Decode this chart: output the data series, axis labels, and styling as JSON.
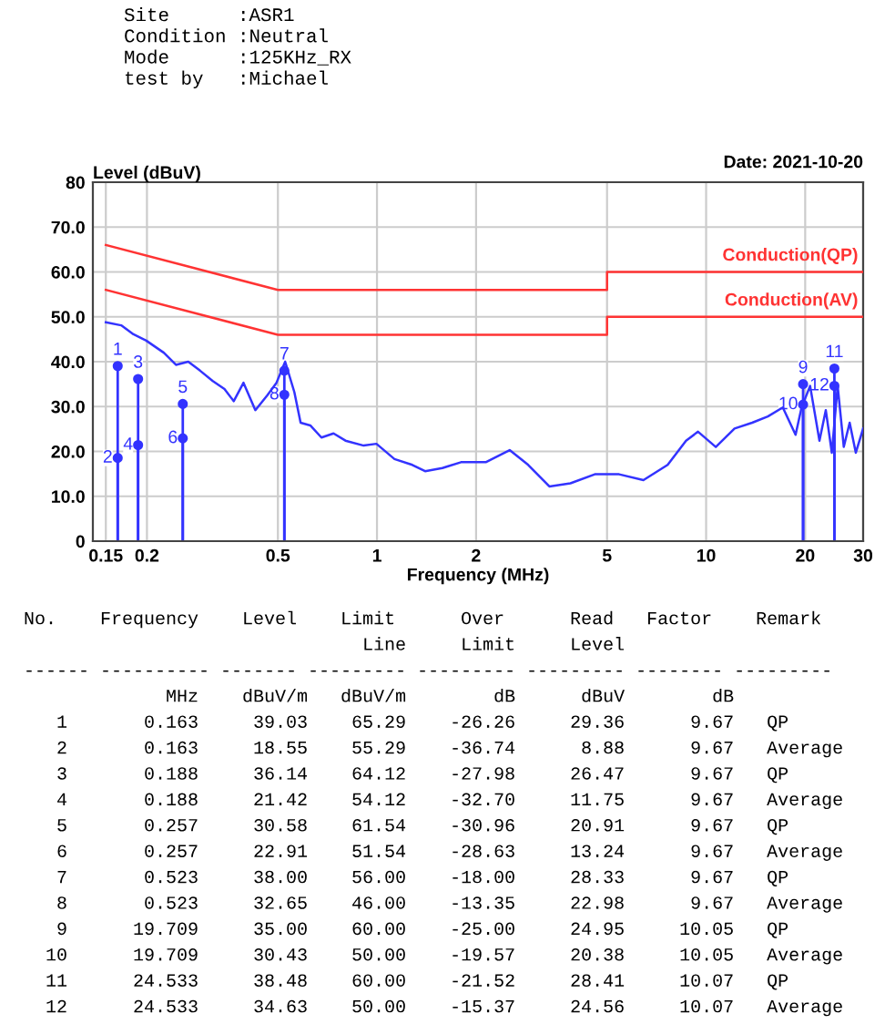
{
  "chart_data": {
    "type": "line",
    "title": "Site      :ASR1\nCondition :Neutral\nMode      :125KHz_RX\ntest by   :Michael",
    "subtitle": "Date: 2021-10-20",
    "xlabel": "Frequency (MHz)",
    "ylabel": "Level (dBuV)",
    "log": "x",
    "grid": true,
    "legend": false,
    "marker": "none",
    "line_style": "solid",
    "xlim": [
      0.137,
      30
    ],
    "xticks": [
      0.15,
      0.2,
      0.5,
      1,
      2,
      5,
      10,
      20,
      30
    ],
    "ylim": [
      0,
      80
    ],
    "yticks": [
      0,
      {
        "value": 10,
        "label": "10.0"
      },
      {
        "value": 20,
        "label": "20.0"
      },
      {
        "value": 30,
        "label": "30.0"
      },
      {
        "value": 40,
        "label": "40.0"
      },
      {
        "value": 50,
        "label": "50.0"
      },
      {
        "value": 60,
        "label": "60.0"
      },
      {
        "value": 70,
        "label": "70.0"
      },
      80
    ],
    "series": [
      {
        "color": "#3333ff",
        "x": [
          0.15,
          0.167,
          0.182,
          0.199,
          0.225,
          0.245,
          0.267,
          0.29,
          0.317,
          0.344,
          0.367,
          0.393,
          0.427,
          0.464,
          0.495,
          0.526,
          0.561,
          0.586,
          0.627,
          0.678,
          0.738,
          0.802,
          0.911,
          0.996,
          1.13,
          1.28,
          1.4,
          1.58,
          1.8,
          2.14,
          2.53,
          2.88,
          3.34,
          3.87,
          4.59,
          5.44,
          6.45,
          7.64,
          8.69,
          9.45,
          10.7,
          12.2,
          13.8,
          15.4,
          17.1,
          18.7,
          19.5,
          20.7,
          22.1,
          23.1,
          24.1,
          25.1,
          26.2,
          27.3,
          28.5,
          30
        ],
        "values": [
          48.8,
          48.1,
          46.1,
          44.7,
          42.0,
          39.3,
          40.0,
          38.0,
          35.7,
          33.9,
          31.2,
          35.3,
          29.2,
          32.5,
          35.3,
          40.0,
          33.2,
          26.4,
          25.8,
          23.1,
          24.0,
          22.4,
          21.3,
          21.7,
          18.3,
          17.0,
          15.6,
          16.3,
          17.6,
          17.6,
          20.3,
          17.0,
          12.2,
          12.9,
          14.9,
          14.9,
          13.6,
          17.0,
          22.4,
          24.4,
          21.0,
          25.1,
          26.4,
          27.8,
          29.8,
          23.7,
          29.8,
          34.6,
          22.4,
          29.2,
          19.7,
          34.6,
          21.0,
          26.4,
          19.7,
          25.1
        ]
      },
      {
        "name": "Conduction(QP)",
        "color": "#ff3333",
        "x": [
          0.15,
          0.5,
          5,
          5,
          30
        ],
        "values": [
          66,
          56,
          56,
          60,
          60
        ]
      },
      {
        "name": "Conduction(AV)",
        "color": "#ff3333",
        "x": [
          0.15,
          0.5,
          5,
          5,
          30
        ],
        "values": [
          56,
          46,
          46,
          50,
          50
        ]
      },
      {
        "type": "lollipop",
        "marker": "circle",
        "color": "#3333ff",
        "x": [
          0.163,
          0.163,
          0.188,
          0.188,
          0.257,
          0.257,
          0.523,
          0.523,
          19.709,
          19.709,
          24.533,
          24.533
        ],
        "values": [
          39.03,
          18.55,
          36.14,
          21.42,
          30.58,
          22.91,
          38.0,
          32.65,
          35.0,
          30.43,
          38.48,
          34.63
        ]
      }
    ],
    "annotations": [
      {
        "text": "1",
        "x": 0.163,
        "y": 39.03
      },
      {
        "text": "2",
        "x": 0.163,
        "y": 18.55
      },
      {
        "text": "3",
        "x": 0.188,
        "y": 36.14
      },
      {
        "text": "4",
        "x": 0.188,
        "y": 21.42
      },
      {
        "text": "5",
        "x": 0.257,
        "y": 30.58
      },
      {
        "text": "6",
        "x": 0.257,
        "y": 22.91
      },
      {
        "text": "7",
        "x": 0.523,
        "y": 38.0
      },
      {
        "text": "8",
        "x": 0.523,
        "y": 32.65
      },
      {
        "text": "9",
        "x": 19.709,
        "y": 35.0
      },
      {
        "text": "10",
        "x": 19.709,
        "y": 30.43
      },
      {
        "text": "11",
        "x": 24.533,
        "y": 38.48
      },
      {
        "text": "12",
        "x": 24.533,
        "y": 34.63
      },
      "No.    Frequency    Level    Limit      Over      Read   Factor    Remark",
      "                               Line     Limit     Level",
      "------ ---------- ------- --------- --------- --------- -------- ---------",
      "             MHz    dBuV/m   dBuV/m        dB      dBuV        dB",
      "   1       0.163     39.03    65.29    -26.26     29.36      9.67   QP",
      "   2       0.163     18.55    55.29    -36.74      8.88      9.67   Average",
      "   3       0.188     36.14    64.12    -27.98     26.47      9.67   QP",
      "   4       0.188     21.42    54.12    -32.70     11.75      9.67   Average",
      "   5       0.257     30.58    61.54    -30.96     20.91      9.67   QP",
      "   6       0.257     22.91    51.54    -28.63     13.24      9.67   Average",
      "   7       0.523     38.00    56.00    -18.00     28.33      9.67   QP",
      "   8       0.523     32.65    46.00    -13.35     22.98      9.67   Average",
      "   9      19.709     35.00    60.00    -25.00     24.95     10.05   QP",
      "  10      19.709     30.43    50.00    -19.57     20.38     10.05   Average",
      "  11      24.533     38.48    60.00    -21.52     28.41     10.07   QP",
      "  12      24.533     34.63    50.00    -15.37     24.56     10.07   Average"
    ]
  }
}
